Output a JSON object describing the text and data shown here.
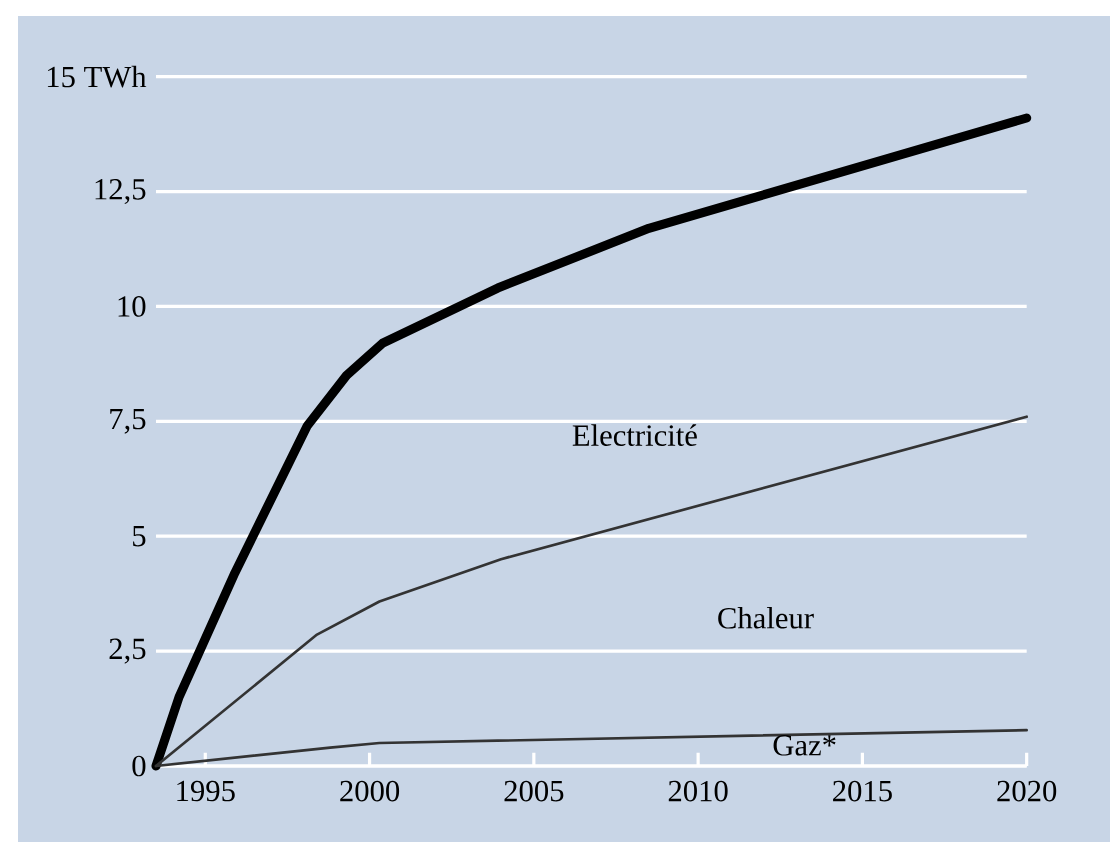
{
  "chart_data": {
    "type": "line",
    "xlim": [
      1993.5,
      2020
    ],
    "ylim": [
      0,
      15
    ],
    "xticks": [
      1995,
      2000,
      2005,
      2010,
      2015,
      2020
    ],
    "yticks": [
      0,
      {
        "value": 2.5,
        "label": "2,5"
      },
      5,
      {
        "value": 7.5,
        "label": "7,5"
      },
      10,
      {
        "value": 12.5,
        "label": "12,5"
      },
      {
        "value": 15,
        "label": "15 TWh"
      }
    ],
    "grid": "y",
    "line_style": "solid",
    "annotations": [
      "Electricité",
      "Chaleur",
      "Gaz*"
    ],
    "series": [
      {
        "color": "#000000",
        "x": [
          1993.5,
          1994.2,
          1995.9,
          1998.1,
          1999.3,
          2000.4,
          2003.9,
          2008.5,
          2020
        ],
        "values": [
          0,
          1.5,
          4.2,
          7.4,
          8.5,
          9.2,
          10.4,
          11.7,
          14.1
        ]
      },
      {
        "color": "#333333",
        "x": [
          1993.5,
          1998.4,
          2000.3,
          2004,
          2020
        ],
        "values": [
          0,
          2.86,
          3.58,
          4.5,
          7.6
        ]
      },
      {
        "color": "#333333",
        "x": [
          1993.5,
          1998.8,
          2000.3,
          2020
        ],
        "values": [
          0,
          0.4,
          0.5,
          0.78
        ]
      }
    ]
  }
}
